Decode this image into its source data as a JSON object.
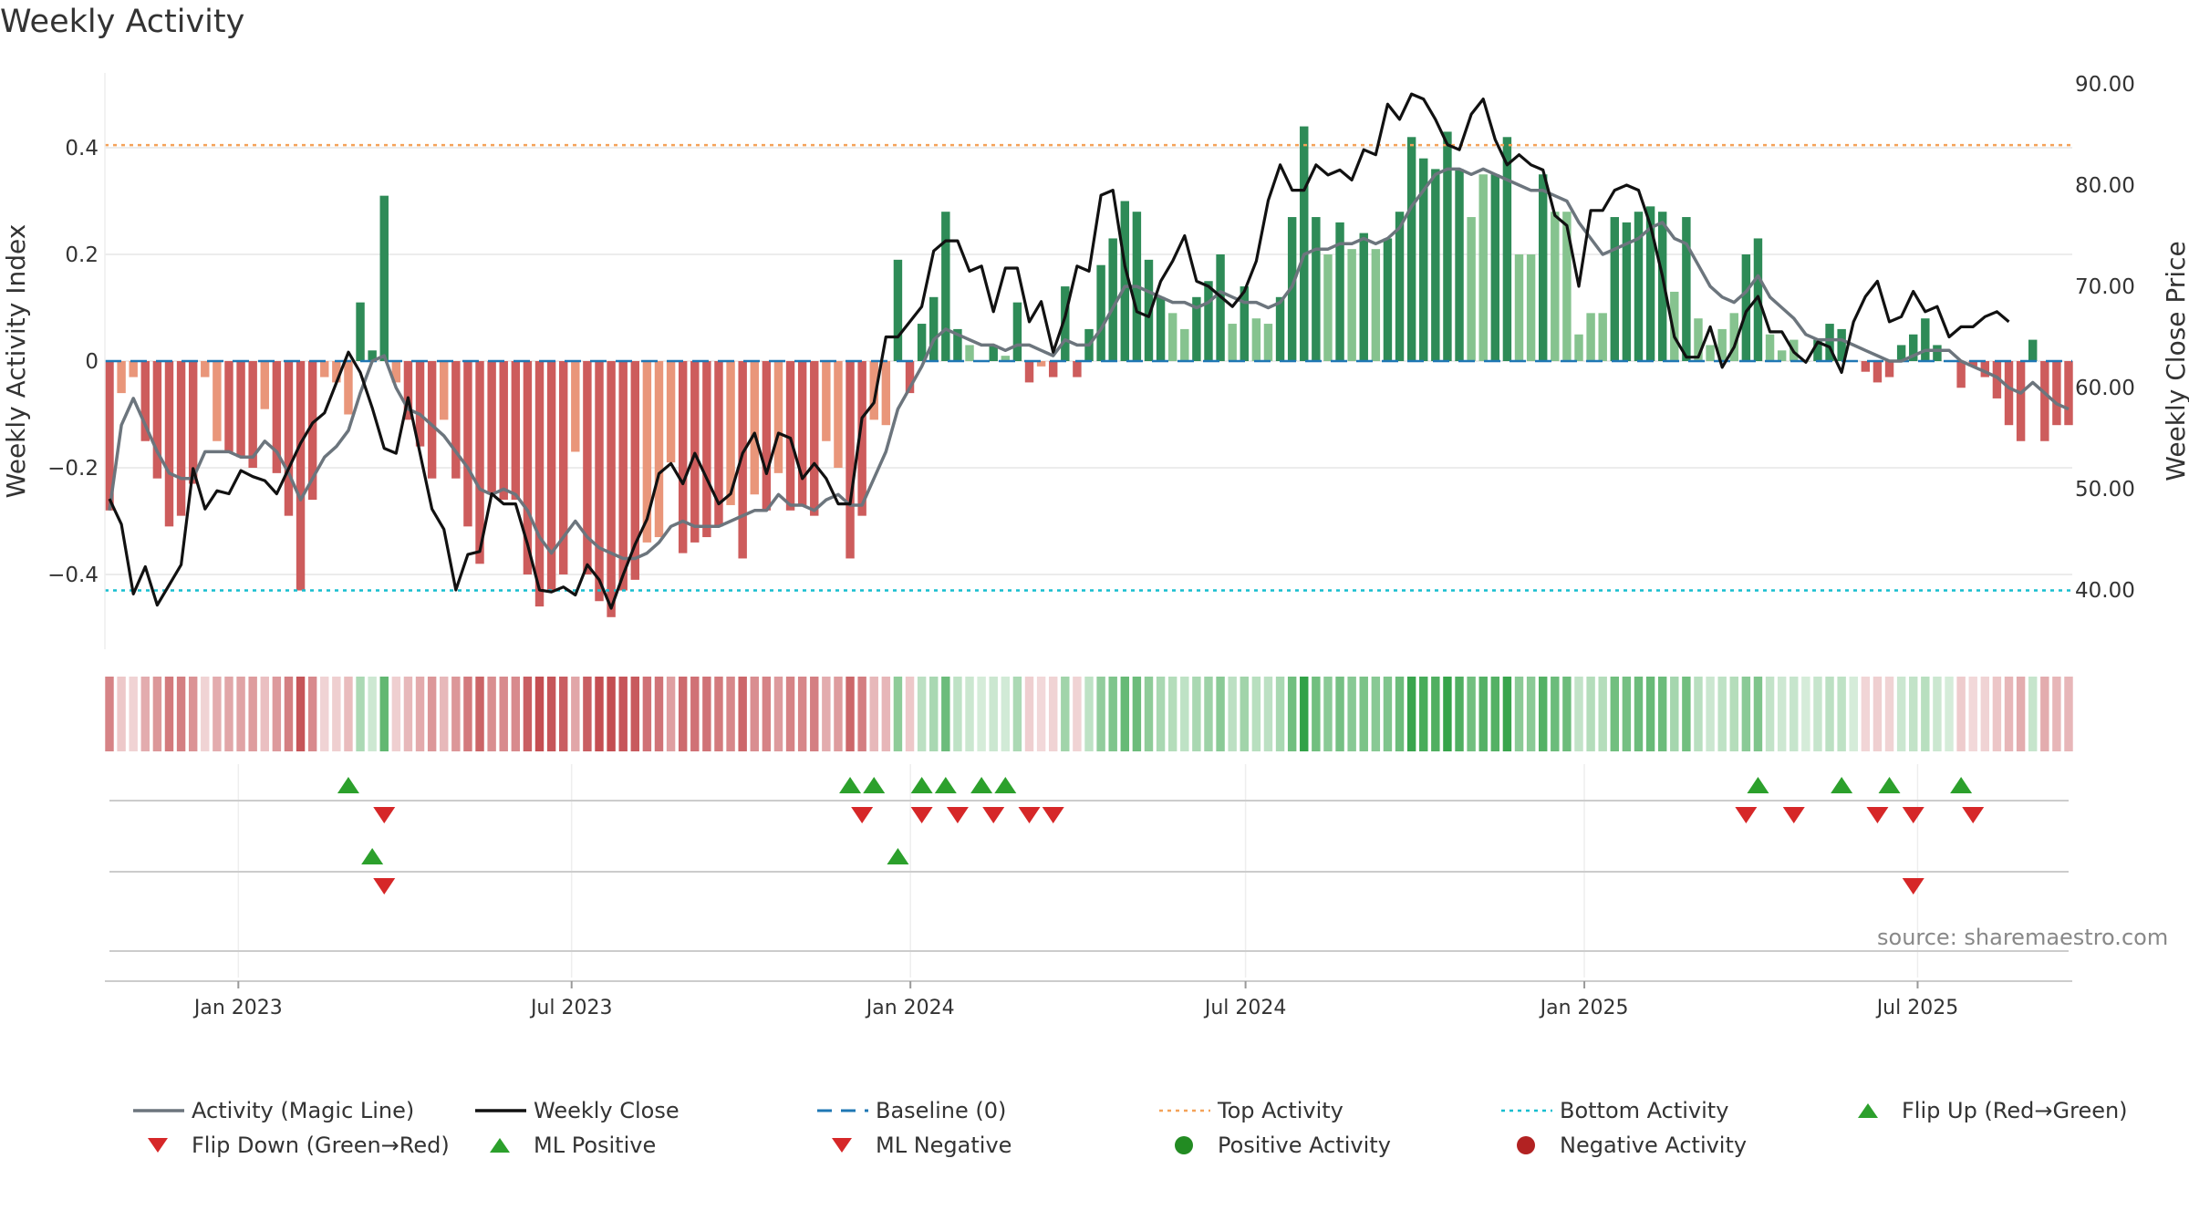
{
  "title": "Weekly Activity",
  "source": "source: sharemaestro.com",
  "colors": {
    "magic_line": "#6c757d",
    "close_line": "#111111",
    "baseline": "#1f77b4",
    "top_line": "#f4a259",
    "bottom_line": "#17becf",
    "pos_strong": "#2e8b57",
    "pos_weak": "#86c38f",
    "neg_strong": "#cd5c5c",
    "neg_weak": "#e9967a",
    "flip_up": "#2ca02c",
    "flip_down": "#d62728",
    "grid": "#e6e6e6"
  },
  "legend": [
    {
      "label": "Activity (Magic Line)",
      "symbol": "line-gray"
    },
    {
      "label": "Weekly Close",
      "symbol": "line-black"
    },
    {
      "label": "Baseline (0)",
      "symbol": "line-dashed-blue"
    },
    {
      "label": "Top Activity",
      "symbol": "line-dotted-orange"
    },
    {
      "label": "Bottom Activity",
      "symbol": "line-dotted-cyan"
    },
    {
      "label": "Flip Up (Red→Green)",
      "symbol": "triangle-up-green"
    },
    {
      "label": "Flip Down (Green→Red)",
      "symbol": "triangle-down-red"
    },
    {
      "label": "ML Positive",
      "symbol": "triangle-up-green"
    },
    {
      "label": "ML Negative",
      "symbol": "triangle-down-red"
    },
    {
      "label": "Positive Activity",
      "symbol": "circle-green"
    },
    {
      "label": "Negative Activity",
      "symbol": "circle-red"
    }
  ],
  "chart_data": {
    "type": "bar",
    "title": "Weekly Activity",
    "ylabel": "Weekly Activity Index",
    "y2label": "Weekly Close Price",
    "ylim": [
      -0.54,
      0.54
    ],
    "y2lim": [
      35.0,
      92.5
    ],
    "yticks": [
      0.4,
      0.2,
      0,
      -0.2,
      -0.4
    ],
    "ytick_labels": [
      "0.4",
      "0.2",
      "0",
      "−0.2",
      "−0.4"
    ],
    "y2ticks": [
      90,
      80,
      70,
      60,
      50,
      40
    ],
    "y2tick_labels": [
      "90.00",
      "80.00",
      "70.00",
      "60.00",
      "50.00",
      "40.00"
    ],
    "x_start": "2022-10-23",
    "x_end": "2025-09-21",
    "xtick_labels": [
      {
        "date": "2023-01-01",
        "label": "Jan 2023"
      },
      {
        "date": "2023-07-01",
        "label": "Jul 2023"
      },
      {
        "date": "2024-01-01",
        "label": "Jan 2024"
      },
      {
        "date": "2024-07-01",
        "label": "Jul 2024"
      },
      {
        "date": "2025-01-01",
        "label": "Jan 2025"
      },
      {
        "date": "2025-07-01",
        "label": "Jul 2025"
      }
    ],
    "top_activity": 0.405,
    "bottom_activity": -0.43,
    "baseline": 0,
    "grid": true,
    "weekly_activity": [
      -0.28,
      -0.06,
      -0.03,
      -0.15,
      -0.22,
      -0.31,
      -0.29,
      -0.23,
      -0.03,
      -0.15,
      -0.17,
      -0.18,
      -0.2,
      -0.09,
      -0.21,
      -0.29,
      -0.43,
      -0.26,
      -0.03,
      -0.04,
      -0.1,
      0.11,
      0.02,
      0.31,
      -0.04,
      -0.11,
      -0.16,
      -0.22,
      -0.11,
      -0.22,
      -0.31,
      -0.38,
      -0.25,
      -0.26,
      -0.26,
      -0.4,
      -0.46,
      -0.43,
      -0.4,
      -0.17,
      -0.4,
      -0.45,
      -0.48,
      -0.43,
      -0.41,
      -0.34,
      -0.33,
      -0.19,
      -0.36,
      -0.34,
      -0.33,
      -0.31,
      -0.27,
      -0.37,
      -0.25,
      -0.28,
      -0.21,
      -0.28,
      -0.27,
      -0.29,
      -0.15,
      -0.2,
      -0.37,
      -0.29,
      -0.11,
      -0.12,
      0.19,
      -0.06,
      0.07,
      0.12,
      0.28,
      0.06,
      0.03,
      0.0,
      0.03,
      0.01,
      0.11,
      -0.04,
      -0.01,
      -0.03,
      0.14,
      -0.03,
      0.06,
      0.18,
      0.23,
      0.3,
      0.28,
      0.19,
      0.12,
      0.09,
      0.06,
      0.12,
      0.15,
      0.2,
      0.07,
      0.14,
      0.08,
      0.07,
      0.12,
      0.27,
      0.44,
      0.27,
      0.2,
      0.26,
      0.21,
      0.24,
      0.21,
      0.23,
      0.28,
      0.42,
      0.38,
      0.36,
      0.43,
      0.36,
      0.27,
      0.35,
      0.35,
      0.42,
      0.2,
      0.2,
      0.35,
      0.28,
      0.28,
      0.05,
      0.09,
      0.09,
      0.27,
      0.26,
      0.28,
      0.29,
      0.28,
      0.13,
      0.27,
      0.08,
      0.03,
      0.06,
      0.09,
      0.2,
      0.23,
      0.05,
      0.02,
      0.04,
      0.0,
      0.04,
      0.07,
      0.06,
      0.0,
      -0.02,
      -0.04,
      -0.03,
      0.03,
      0.05,
      0.08,
      0.03,
      0.0,
      -0.05,
      -0.01,
      -0.03,
      -0.07,
      -0.12,
      -0.15,
      0.04,
      -0.15,
      -0.12,
      -0.12
    ],
    "magic_line": [
      -0.28,
      -0.12,
      -0.07,
      -0.12,
      -0.17,
      -0.21,
      -0.22,
      -0.22,
      -0.17,
      -0.17,
      -0.17,
      -0.18,
      -0.18,
      -0.15,
      -0.17,
      -0.21,
      -0.26,
      -0.22,
      -0.18,
      -0.16,
      -0.13,
      -0.06,
      0.0,
      0.01,
      -0.05,
      -0.09,
      -0.1,
      -0.12,
      -0.14,
      -0.17,
      -0.2,
      -0.24,
      -0.25,
      -0.24,
      -0.25,
      -0.28,
      -0.33,
      -0.36,
      -0.33,
      -0.3,
      -0.33,
      -0.35,
      -0.36,
      -0.37,
      -0.37,
      -0.36,
      -0.34,
      -0.31,
      -0.3,
      -0.31,
      -0.31,
      -0.31,
      -0.3,
      -0.29,
      -0.28,
      -0.28,
      -0.25,
      -0.27,
      -0.27,
      -0.28,
      -0.26,
      -0.25,
      -0.27,
      -0.27,
      -0.22,
      -0.17,
      -0.09,
      -0.05,
      -0.01,
      0.04,
      0.06,
      0.05,
      0.04,
      0.03,
      0.03,
      0.02,
      0.03,
      0.03,
      0.02,
      0.01,
      0.04,
      0.03,
      0.03,
      0.06,
      0.1,
      0.14,
      0.14,
      0.13,
      0.12,
      0.11,
      0.11,
      0.1,
      0.11,
      0.13,
      0.12,
      0.11,
      0.11,
      0.1,
      0.11,
      0.14,
      0.2,
      0.21,
      0.21,
      0.22,
      0.22,
      0.23,
      0.22,
      0.23,
      0.25,
      0.29,
      0.32,
      0.35,
      0.36,
      0.36,
      0.35,
      0.36,
      0.35,
      0.34,
      0.33,
      0.32,
      0.32,
      0.31,
      0.3,
      0.26,
      0.23,
      0.2,
      0.21,
      0.22,
      0.23,
      0.25,
      0.26,
      0.23,
      0.22,
      0.18,
      0.14,
      0.12,
      0.11,
      0.13,
      0.16,
      0.12,
      0.1,
      0.08,
      0.05,
      0.04,
      0.04,
      0.04,
      0.03,
      0.02,
      0.01,
      0.0,
      0.0,
      0.01,
      0.02,
      0.02,
      0.02,
      0.0,
      -0.01,
      -0.02,
      -0.03,
      -0.05,
      -0.06,
      -0.04,
      -0.06,
      -0.08,
      -0.09
    ],
    "weekly_close": [
      49.0,
      46.5,
      39.6,
      42.3,
      38.5,
      40.5,
      42.5,
      52.0,
      48.0,
      49.8,
      49.5,
      51.8,
      51.2,
      50.8,
      49.5,
      52.0,
      54.5,
      56.5,
      57.5,
      60.5,
      63.5,
      61.5,
      58.0,
      54.0,
      53.5,
      59.0,
      53.5,
      48.0,
      46.0,
      40.0,
      43.5,
      43.8,
      49.5,
      48.5,
      48.5,
      44.5,
      40.0,
      39.8,
      40.3,
      39.5,
      42.5,
      41.0,
      38.2,
      41.5,
      44.5,
      47.0,
      51.5,
      52.5,
      50.5,
      53.5,
      51.0,
      48.5,
      49.5,
      53.5,
      55.5,
      51.5,
      55.5,
      55.0,
      51.0,
      52.5,
      51.0,
      48.5,
      48.5,
      57.0,
      58.5,
      65.0,
      65.0,
      66.5,
      68.0,
      73.5,
      74.5,
      74.5,
      71.5,
      72.0,
      67.5,
      71.8,
      71.8,
      66.5,
      68.5,
      63.5,
      67.0,
      72.0,
      71.5,
      79.0,
      79.5,
      72.0,
      67.5,
      67.0,
      70.5,
      72.5,
      75.0,
      70.5,
      70.0,
      69.0,
      68.0,
      69.5,
      72.5,
      78.5,
      82.0,
      79.5,
      79.5,
      82.0,
      81.0,
      81.5,
      80.5,
      83.5,
      83.0,
      88.0,
      86.5,
      89.0,
      88.5,
      86.5,
      84.0,
      83.5,
      87.0,
      88.5,
      84.5,
      82.0,
      83.0,
      82.0,
      81.5,
      77.0,
      76.0,
      70.0,
      77.5,
      77.5,
      79.5,
      80.0,
      79.5,
      76.0,
      71.0,
      65.0,
      63.0,
      63.0,
      66.0,
      62.0,
      64.0,
      67.5,
      69.0,
      65.5,
      65.5,
      63.5,
      62.5,
      64.5,
      64.0,
      61.5,
      66.5,
      69.0,
      70.5,
      66.5,
      67.0,
      69.5,
      67.5,
      68.0,
      65.0,
      66.0,
      66.0,
      67.0,
      67.5,
      66.5
    ],
    "flip_up_weeks": [
      20,
      62,
      64,
      68,
      70,
      73,
      75,
      138,
      145,
      149,
      155
    ],
    "flip_down_weeks": [
      23,
      63,
      68,
      71,
      74,
      77,
      79,
      137,
      141,
      148,
      151,
      156
    ],
    "ml_positive_weeks": [
      22,
      66
    ],
    "ml_negative_weeks": [
      23,
      151
    ]
  }
}
